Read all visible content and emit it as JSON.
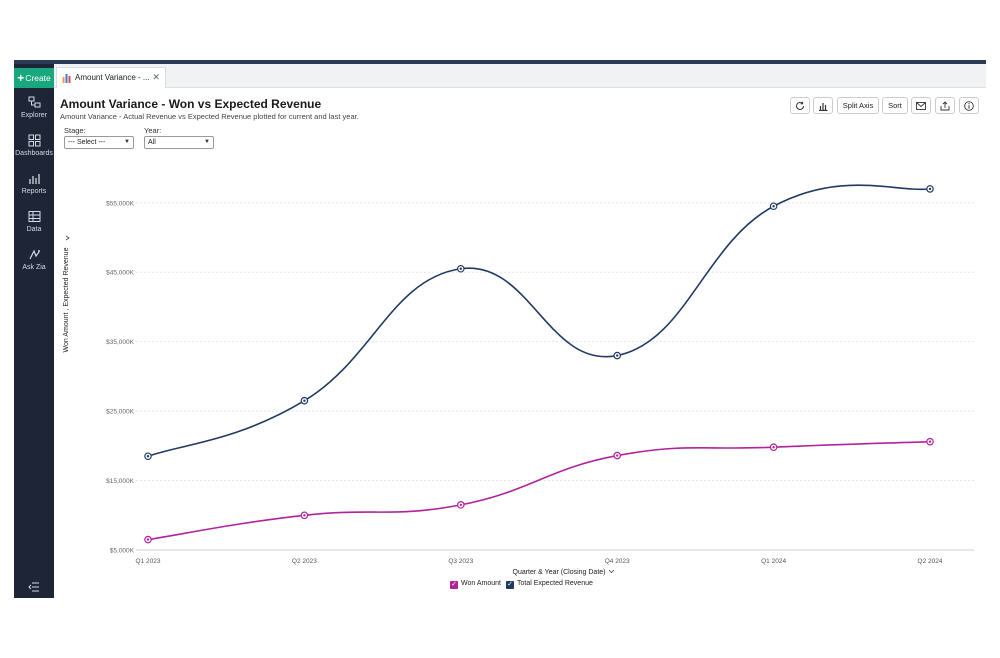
{
  "sidebar": {
    "create_label": "Create",
    "items": [
      {
        "label": "Explorer",
        "icon": "explorer-icon"
      },
      {
        "label": "Dashboards",
        "icon": "dashboards-icon"
      },
      {
        "label": "Reports",
        "icon": "reports-icon"
      },
      {
        "label": "Data",
        "icon": "data-icon"
      },
      {
        "label": "Ask Zia",
        "icon": "ask-zia-icon"
      }
    ]
  },
  "tab": {
    "label": "Amount Variance - ...",
    "close": "✕"
  },
  "report": {
    "title": "Amount Variance - Won vs Expected Revenue",
    "subtitle": "Amount Variance - Actual Revenue vs Expected Revenue plotted for current and last year."
  },
  "filters": {
    "stage_label": "Stage:",
    "stage_value": "--- Select ---",
    "year_label": "Year:",
    "year_value": "All"
  },
  "toolbar": {
    "split_axis_label": "Split Axis",
    "sort_label": "Sort"
  },
  "colors": {
    "won": "#b2229c",
    "expected": "#223a63",
    "sidebar": "#1d2536",
    "create": "#19a77e"
  },
  "chart_data": {
    "type": "line",
    "categories": [
      "Q1 2023",
      "Q2 2023",
      "Q3 2023",
      "Q4 2023",
      "Q1 2024",
      "Q2 2024"
    ],
    "series": [
      {
        "name": "Won Amount",
        "values": [
          6500,
          10000,
          11500,
          18600,
          19800,
          20600
        ]
      },
      {
        "name": "Total Expected Revenue",
        "values": [
          18500,
          26500,
          45500,
          33000,
          54500,
          57000
        ]
      }
    ],
    "y_ticks": [
      "$5,000K",
      "$15,000K",
      "$25,000K",
      "$35,000K",
      "$45,000K",
      "$55,000K"
    ],
    "y_tick_values": [
      5000,
      15000,
      25000,
      35000,
      45000,
      55000
    ],
    "ylim": [
      5000,
      59000
    ],
    "xlabel": "Quarter & Year (Closing Date)",
    "ylabel": "Won Amount , Expected Revenue",
    "grid": true,
    "legend_position": "bottom"
  }
}
